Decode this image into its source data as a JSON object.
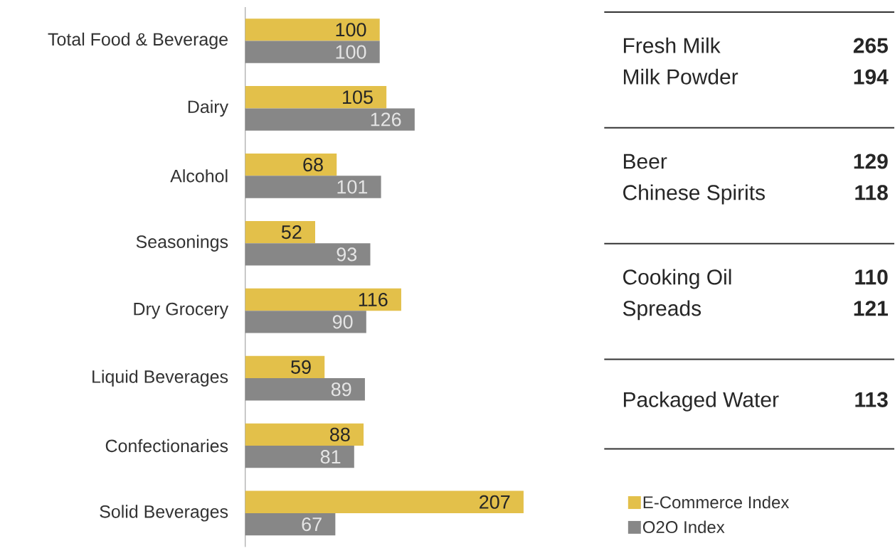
{
  "chart_data": [
    {
      "type": "bar",
      "orientation": "horizontal",
      "categories": [
        "Total Food & Beverage",
        "Dairy",
        "Alcohol",
        "Seasonings",
        "Dry Grocery",
        "Liquid Beverages",
        "Confectionaries",
        "Solid Beverages"
      ],
      "series": [
        {
          "name": "E-Commerce Index",
          "color": "#e3c04a",
          "values": [
            100,
            105,
            68,
            52,
            116,
            59,
            88,
            207
          ]
        },
        {
          "name": "O2O Index",
          "color": "#878787",
          "values": [
            100,
            126,
            101,
            93,
            90,
            89,
            81,
            67
          ]
        }
      ],
      "data_labels": true,
      "legend": "bottom right"
    },
    {
      "type": "other",
      "categories": [
        "Fresh Milk",
        "Milk Powder",
        "Beer",
        "Chinese Spirits",
        "Cooking Oil",
        "Spreads",
        "Packaged Water"
      ],
      "values": [
        265,
        194,
        129,
        118,
        110,
        121,
        113
      ],
      "data_labels": true
    }
  ]
}
